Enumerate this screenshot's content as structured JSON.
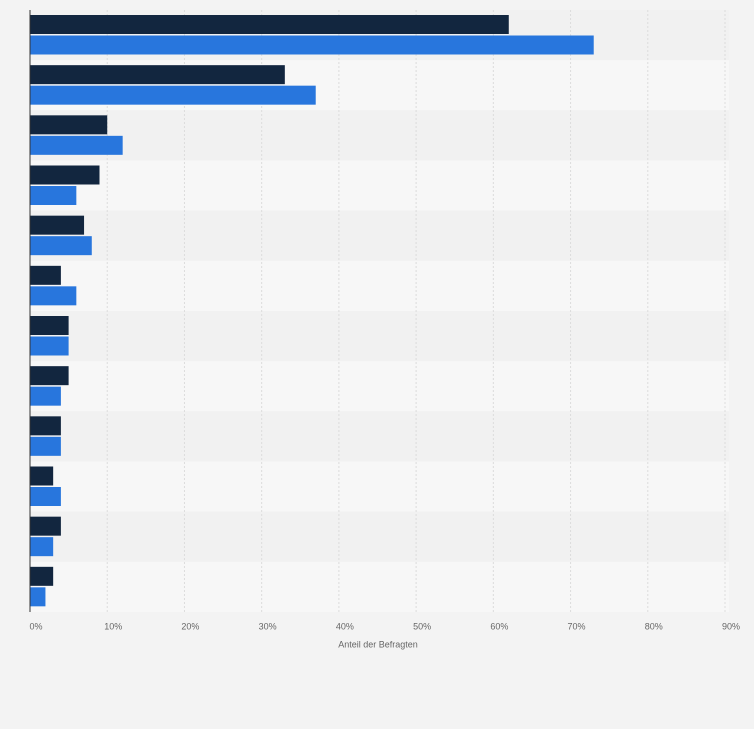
{
  "chart_data": {
    "type": "bar",
    "orientation": "horizontal",
    "categories": [
      null,
      null,
      null,
      null,
      null,
      null,
      null,
      null,
      null,
      null,
      null,
      null
    ],
    "series": [
      {
        "color": "#12263f",
        "values": [
          62,
          33,
          10,
          9,
          7,
          4,
          5,
          5,
          4,
          3,
          4,
          3
        ]
      },
      {
        "color": "#2876dd",
        "values": [
          73,
          37,
          12,
          6,
          8,
          6,
          5,
          4,
          4,
          4,
          3,
          2
        ]
      }
    ],
    "xlabel": "Anteil der Befragten",
    "xlim": [
      0,
      90
    ],
    "xticks": [
      {
        "value": 0,
        "label": "0%"
      },
      {
        "value": 10,
        "label": "10%"
      },
      {
        "value": 20,
        "label": "20%"
      },
      {
        "value": 30,
        "label": "30%"
      },
      {
        "value": 40,
        "label": "40%"
      },
      {
        "value": 50,
        "label": "50%"
      },
      {
        "value": 60,
        "label": "60%"
      },
      {
        "value": 70,
        "label": "70%"
      },
      {
        "value": 80,
        "label": "80%"
      },
      {
        "value": 90,
        "label": "90%"
      }
    ],
    "grid": true
  }
}
